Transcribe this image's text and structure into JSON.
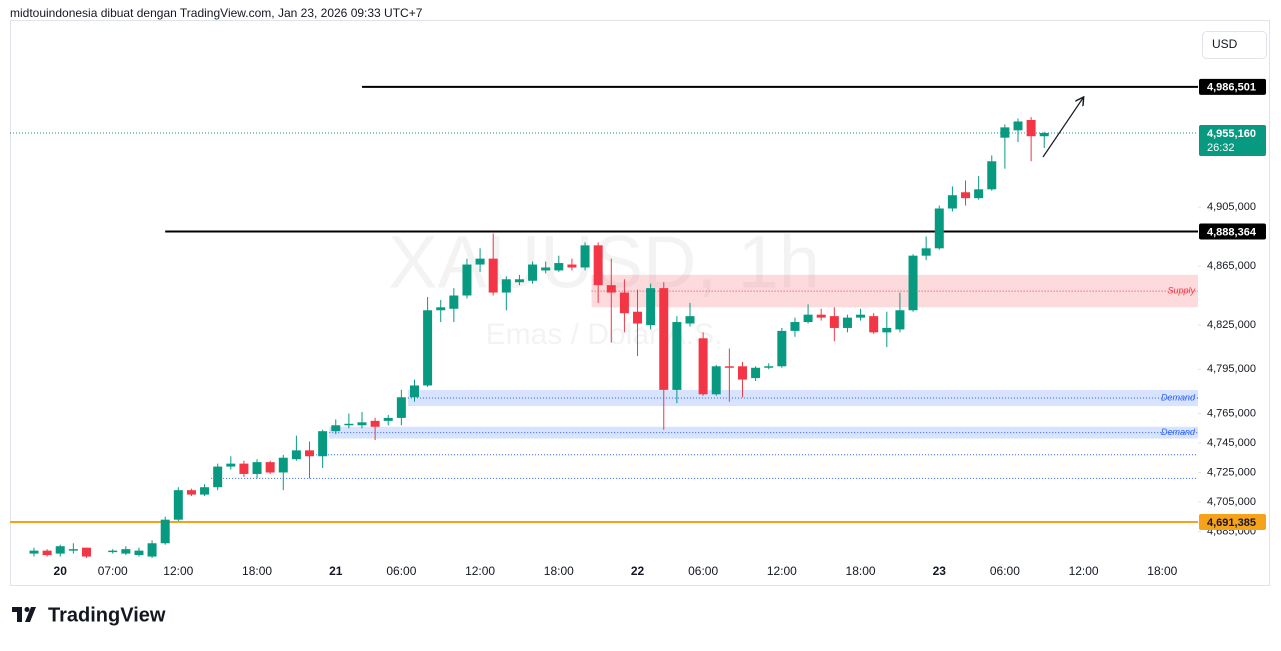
{
  "header": "midtouindonesia dibuat dengan TradingView.com, Jan 23, 2026 09:33 UTC+7",
  "currency_button": "USD",
  "footer_logo": "TradingView",
  "chart_data": {
    "type": "candlestick",
    "watermark_symbol": "XAUUSD, 1h",
    "watermark_description": "Emas / Dolar A.S.",
    "categories": [
      null,
      null,
      "20",
      null,
      null,
      null,
      "07:00",
      null,
      null,
      null,
      null,
      "12:00",
      null,
      null,
      null,
      null,
      null,
      "18:00",
      null,
      null,
      null,
      null,
      null,
      "21",
      null,
      null,
      null,
      null,
      "06:00",
      null,
      null,
      null,
      null,
      null,
      "12:00",
      null,
      null,
      null,
      null,
      null,
      "18:00",
      null,
      null,
      null,
      null,
      null,
      "22",
      null,
      null,
      null,
      null,
      "06:00",
      null,
      null,
      null,
      null,
      null,
      "12:00",
      null,
      null,
      null,
      null,
      null,
      "18:00",
      null,
      null,
      null,
      null,
      null,
      "23",
      null,
      null,
      null,
      null,
      "06:00",
      null,
      null,
      null,
      null,
      null,
      "12:00",
      null,
      null,
      null,
      null,
      null,
      "18:00"
    ],
    "open": [
      4670000,
      4672000,
      4670000,
      4672000,
      4674000,
      null,
      4671000,
      4670000,
      4669000,
      4668000,
      4677000,
      4693000,
      4713000,
      4710000,
      4715000,
      4729000,
      4731000,
      4724000,
      4732000,
      4725000,
      4734000,
      4740000,
      4736000,
      4753000,
      4757000,
      4757000,
      4760000,
      4760000,
      4762000,
      4776000,
      4784000,
      4835000,
      4836000,
      4845000,
      4866000,
      4870000,
      4847000,
      4854000,
      4855000,
      4862000,
      4862000,
      4866000,
      4864000,
      4879000,
      4852000,
      4847000,
      4834000,
      4825000,
      4850000,
      4781000,
      4826000,
      4816000,
      4778000,
      4797000,
      4797000,
      4789000,
      4796000,
      4797000,
      4821000,
      4827000,
      4832000,
      4831000,
      4823000,
      4830000,
      4831000,
      4820000,
      4822000,
      4835000,
      4872000,
      4877000,
      4904000,
      4915000,
      4911000,
      4917000,
      4952000,
      4957000,
      4964000,
      4953000,
      null,
      null,
      null,
      null,
      null,
      null,
      null,
      null,
      null
    ],
    "high": [
      4674000,
      4673000,
      4676000,
      4677000,
      4674000,
      null,
      4673000,
      4675000,
      4674000,
      4679000,
      4695000,
      4715000,
      4714000,
      4717000,
      4731000,
      4736000,
      4733000,
      4734000,
      4733000,
      4737000,
      4750000,
      4746000,
      4754000,
      4761000,
      4765000,
      4766000,
      4762000,
      4764000,
      4781000,
      4788000,
      4844000,
      4842000,
      4850000,
      4870000,
      4877000,
      4887000,
      4858000,
      4859000,
      4868000,
      4868000,
      4872000,
      4870000,
      4881000,
      4881000,
      4870000,
      4856000,
      4849000,
      4853000,
      4854000,
      4831000,
      4840000,
      4820000,
      4798000,
      4809000,
      4800000,
      4797000,
      4799000,
      4823000,
      4830000,
      4839000,
      4836000,
      4837000,
      4832000,
      4836000,
      4833000,
      4834000,
      4847000,
      4873000,
      4885000,
      4906000,
      4919000,
      4923000,
      4926000,
      4940000,
      4961000,
      4965000,
      4966000,
      4956000,
      null,
      null,
      null,
      null,
      null,
      null,
      null,
      null,
      null
    ],
    "low": [
      4668000,
      4668000,
      4668000,
      4670000,
      4667000,
      null,
      4670000,
      4669000,
      4668000,
      4667000,
      4676000,
      4692000,
      4709000,
      4709000,
      4713000,
      4727000,
      4722000,
      4721000,
      4724000,
      4713000,
      4733000,
      4721000,
      4728000,
      4751000,
      4755000,
      4755000,
      4747000,
      4757000,
      4757000,
      4773000,
      4783000,
      4827000,
      4827000,
      4843000,
      4861000,
      4845000,
      4835000,
      4852000,
      4853000,
      4860000,
      4861000,
      4862000,
      4862000,
      4840000,
      4813000,
      4820000,
      4804000,
      4822000,
      4754000,
      4772000,
      4824000,
      4777000,
      4777000,
      4773000,
      4776000,
      4787000,
      4795000,
      4796000,
      4817000,
      4826000,
      4828000,
      4814000,
      4820000,
      4828000,
      4819000,
      4810000,
      4820000,
      4834000,
      4869000,
      4876000,
      4902000,
      4906000,
      4910000,
      4916000,
      4931000,
      4949000,
      4936000,
      4945000,
      null,
      null,
      null,
      null,
      null,
      null,
      null,
      null,
      null
    ],
    "close": [
      4672000,
      4669000,
      4675000,
      4673000,
      4668000,
      null,
      4672000,
      4673000,
      4672000,
      4677000,
      4693000,
      4713000,
      4710000,
      4715000,
      4729000,
      4731000,
      4724000,
      4732000,
      4725000,
      4735000,
      4740000,
      4736000,
      4753000,
      4757000,
      4758000,
      4759000,
      4756000,
      4762000,
      4776000,
      4784000,
      4835000,
      4837000,
      4845000,
      4866000,
      4870000,
      4847000,
      4856000,
      4856000,
      4866000,
      4864000,
      4867000,
      4864000,
      4879000,
      4852000,
      4847000,
      4833000,
      4826000,
      4850000,
      4781000,
      4827000,
      4831000,
      4778000,
      4797000,
      4796000,
      4788000,
      4796000,
      4797000,
      4821000,
      4827000,
      4832000,
      4830000,
      4823000,
      4830000,
      4832000,
      4820000,
      4823000,
      4835000,
      4872000,
      4877000,
      4904000,
      4913000,
      4911000,
      4917000,
      4936000,
      4959000,
      4963000,
      4953000,
      4955160,
      null,
      null,
      null,
      null,
      null,
      null,
      null,
      null,
      null
    ],
    "up_color": "#089981",
    "down_color": "#f23645",
    "ylim": [
      4648700,
      5035200
    ],
    "yticks": [
      {
        "value": 4905000,
        "label": "4,905,000"
      },
      {
        "value": 4865000,
        "label": "4,865,000"
      },
      {
        "value": 4825000,
        "label": "4,825,000"
      },
      {
        "value": 4795000,
        "label": "4,795,000"
      },
      {
        "value": 4765000,
        "label": "4,765,000"
      },
      {
        "value": 4745000,
        "label": "4,745,000"
      },
      {
        "value": 4725000,
        "label": "4,725,000"
      },
      {
        "value": 4705000,
        "label": "4,705,000"
      },
      {
        "value": 4685000,
        "label": "4,685,000"
      }
    ],
    "levels": [
      {
        "value": 4986501,
        "label": "4,986,501",
        "color": "#000000",
        "from_index": 25
      },
      {
        "value": 4888364,
        "label": "4,888,364",
        "color": "#000000",
        "from_index": 10
      },
      {
        "value": 4691385,
        "label": "4,691,385",
        "color": "#f7a21b"
      }
    ],
    "last_price": {
      "value": 4955160,
      "label": "4,955,160",
      "countdown": "26:32",
      "color": "#089981"
    },
    "zones": [
      {
        "label": "Supply",
        "top": 4859000,
        "bottom": 4837000,
        "from_index": 43,
        "color": "#f23645"
      },
      {
        "label": "Demand",
        "top": 4781000,
        "bottom": 4770000,
        "from_index": 29,
        "color": "#2962ff"
      },
      {
        "label": "Demand",
        "top": 4756000,
        "bottom": 4748000,
        "from_index": 23,
        "color": "#2962ff"
      }
    ],
    "lines": [
      {
        "value": 4737000,
        "from_index": 22,
        "color": "#2962ff"
      },
      {
        "value": 4721000,
        "from_index": 14,
        "color": "#2962ff"
      }
    ]
  }
}
